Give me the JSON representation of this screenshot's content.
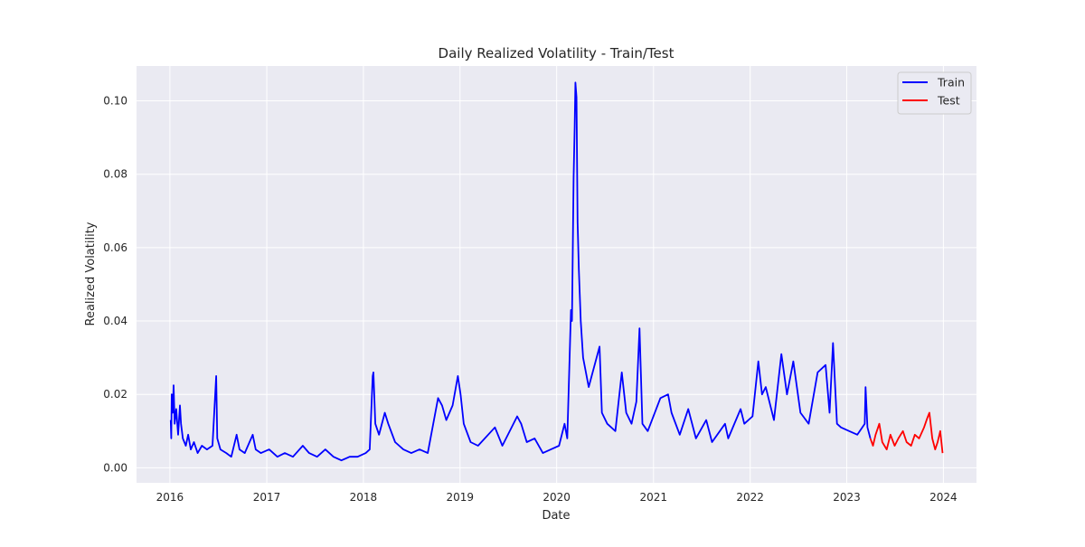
{
  "chart_data": {
    "type": "line",
    "title": "Daily Realized Volatility - Train/Test",
    "xlabel": "Date",
    "ylabel": "Realized Volatility",
    "x_range": [
      "2015-08-28",
      "2024-05-05"
    ],
    "ylim": [
      -0.0041,
      0.1095
    ],
    "x_ticks": [
      "2016",
      "2017",
      "2018",
      "2019",
      "2020",
      "2021",
      "2022",
      "2023",
      "2024"
    ],
    "y_ticks": [
      "0.00",
      "0.02",
      "0.04",
      "0.06",
      "0.08",
      "0.10"
    ],
    "y_tick_values": [
      0,
      0.02,
      0.04,
      0.06,
      0.08,
      0.1
    ],
    "grid": true,
    "background": "#eaeaf2",
    "legend": {
      "placement": "top-right"
    },
    "series": [
      {
        "name": "Train",
        "color": "#0000ff",
        "points": [
          [
            "2016-01-04",
            0.013
          ],
          [
            "2016-01-06",
            0.008
          ],
          [
            "2016-01-08",
            0.02
          ],
          [
            "2016-01-12",
            0.015
          ],
          [
            "2016-01-15",
            0.0225
          ],
          [
            "2016-01-19",
            0.012
          ],
          [
            "2016-01-25",
            0.016
          ],
          [
            "2016-02-01",
            0.009
          ],
          [
            "2016-02-08",
            0.017
          ],
          [
            "2016-02-12",
            0.012
          ],
          [
            "2016-02-19",
            0.008
          ],
          [
            "2016-03-01",
            0.006
          ],
          [
            "2016-03-10",
            0.009
          ],
          [
            "2016-03-20",
            0.005
          ],
          [
            "2016-04-01",
            0.007
          ],
          [
            "2016-04-15",
            0.004
          ],
          [
            "2016-05-01",
            0.006
          ],
          [
            "2016-05-20",
            0.005
          ],
          [
            "2016-06-10",
            0.006
          ],
          [
            "2016-06-24",
            0.025
          ],
          [
            "2016-06-28",
            0.008
          ],
          [
            "2016-07-10",
            0.005
          ],
          [
            "2016-08-01",
            0.004
          ],
          [
            "2016-08-20",
            0.003
          ],
          [
            "2016-09-09",
            0.009
          ],
          [
            "2016-09-20",
            0.005
          ],
          [
            "2016-10-10",
            0.004
          ],
          [
            "2016-11-09",
            0.009
          ],
          [
            "2016-11-20",
            0.005
          ],
          [
            "2016-12-10",
            0.004
          ],
          [
            "2017-01-10",
            0.005
          ],
          [
            "2017-02-10",
            0.003
          ],
          [
            "2017-03-10",
            0.004
          ],
          [
            "2017-04-10",
            0.003
          ],
          [
            "2017-05-17",
            0.006
          ],
          [
            "2017-06-10",
            0.004
          ],
          [
            "2017-07-10",
            0.003
          ],
          [
            "2017-08-10",
            0.005
          ],
          [
            "2017-09-10",
            0.003
          ],
          [
            "2017-10-10",
            0.002
          ],
          [
            "2017-11-10",
            0.003
          ],
          [
            "2017-12-10",
            0.003
          ],
          [
            "2018-01-10",
            0.004
          ],
          [
            "2018-01-25",
            0.005
          ],
          [
            "2018-02-05",
            0.025
          ],
          [
            "2018-02-08",
            0.026
          ],
          [
            "2018-02-15",
            0.012
          ],
          [
            "2018-03-01",
            0.009
          ],
          [
            "2018-03-23",
            0.015
          ],
          [
            "2018-04-05",
            0.012
          ],
          [
            "2018-05-01",
            0.007
          ],
          [
            "2018-06-01",
            0.005
          ],
          [
            "2018-07-01",
            0.004
          ],
          [
            "2018-08-01",
            0.005
          ],
          [
            "2018-09-01",
            0.004
          ],
          [
            "2018-10-10",
            0.019
          ],
          [
            "2018-10-25",
            0.017
          ],
          [
            "2018-11-10",
            0.013
          ],
          [
            "2018-12-04",
            0.017
          ],
          [
            "2018-12-24",
            0.025
          ],
          [
            "2019-01-03",
            0.02
          ],
          [
            "2019-01-15",
            0.012
          ],
          [
            "2019-02-10",
            0.007
          ],
          [
            "2019-03-10",
            0.006
          ],
          [
            "2019-05-13",
            0.011
          ],
          [
            "2019-06-10",
            0.006
          ],
          [
            "2019-08-05",
            0.014
          ],
          [
            "2019-08-20",
            0.012
          ],
          [
            "2019-09-10",
            0.007
          ],
          [
            "2019-10-10",
            0.008
          ],
          [
            "2019-11-10",
            0.004
          ],
          [
            "2019-12-10",
            0.005
          ],
          [
            "2020-01-10",
            0.006
          ],
          [
            "2020-01-31",
            0.012
          ],
          [
            "2020-02-10",
            0.008
          ],
          [
            "2020-02-24",
            0.043
          ],
          [
            "2020-02-28",
            0.04
          ],
          [
            "2020-03-05",
            0.079
          ],
          [
            "2020-03-09",
            0.093
          ],
          [
            "2020-03-12",
            0.105
          ],
          [
            "2020-03-16",
            0.101
          ],
          [
            "2020-03-20",
            0.067
          ],
          [
            "2020-03-25",
            0.054
          ],
          [
            "2020-04-01",
            0.04
          ],
          [
            "2020-04-10",
            0.03
          ],
          [
            "2020-05-01",
            0.022
          ],
          [
            "2020-06-11",
            0.033
          ],
          [
            "2020-06-20",
            0.015
          ],
          [
            "2020-07-10",
            0.012
          ],
          [
            "2020-08-10",
            0.01
          ],
          [
            "2020-09-03",
            0.026
          ],
          [
            "2020-09-20",
            0.015
          ],
          [
            "2020-10-10",
            0.012
          ],
          [
            "2020-10-28",
            0.018
          ],
          [
            "2020-11-09",
            0.038
          ],
          [
            "2020-11-20",
            0.012
          ],
          [
            "2020-12-10",
            0.01
          ],
          [
            "2021-01-27",
            0.019
          ],
          [
            "2021-02-25",
            0.02
          ],
          [
            "2021-03-10",
            0.015
          ],
          [
            "2021-04-10",
            0.009
          ],
          [
            "2021-05-12",
            0.016
          ],
          [
            "2021-06-10",
            0.008
          ],
          [
            "2021-07-19",
            0.013
          ],
          [
            "2021-08-10",
            0.007
          ],
          [
            "2021-09-28",
            0.012
          ],
          [
            "2021-10-10",
            0.008
          ],
          [
            "2021-11-26",
            0.016
          ],
          [
            "2021-12-10",
            0.012
          ],
          [
            "2022-01-10",
            0.014
          ],
          [
            "2022-02-01",
            0.029
          ],
          [
            "2022-02-15",
            0.02
          ],
          [
            "2022-03-01",
            0.022
          ],
          [
            "2022-04-01",
            0.013
          ],
          [
            "2022-04-29",
            0.031
          ],
          [
            "2022-05-20",
            0.02
          ],
          [
            "2022-06-13",
            0.029
          ],
          [
            "2022-07-10",
            0.015
          ],
          [
            "2022-08-10",
            0.012
          ],
          [
            "2022-09-13",
            0.026
          ],
          [
            "2022-10-13",
            0.028
          ],
          [
            "2022-10-28",
            0.015
          ],
          [
            "2022-11-10",
            0.034
          ],
          [
            "2022-11-25",
            0.012
          ],
          [
            "2022-12-10",
            0.011
          ],
          [
            "2023-01-10",
            0.01
          ],
          [
            "2023-02-10",
            0.009
          ],
          [
            "2023-03-10",
            0.012
          ],
          [
            "2023-03-13",
            0.022
          ],
          [
            "2023-03-20",
            0.011
          ],
          [
            "2023-03-31",
            0.008
          ]
        ]
      },
      {
        "name": "Test",
        "color": "#ff0000",
        "points": [
          [
            "2023-03-31",
            0.008
          ],
          [
            "2023-04-10",
            0.006
          ],
          [
            "2023-04-20",
            0.009
          ],
          [
            "2023-05-04",
            0.012
          ],
          [
            "2023-05-15",
            0.007
          ],
          [
            "2023-06-01",
            0.005
          ],
          [
            "2023-06-15",
            0.009
          ],
          [
            "2023-07-01",
            0.006
          ],
          [
            "2023-07-15",
            0.008
          ],
          [
            "2023-08-01",
            0.01
          ],
          [
            "2023-08-15",
            0.007
          ],
          [
            "2023-09-01",
            0.006
          ],
          [
            "2023-09-15",
            0.009
          ],
          [
            "2023-10-01",
            0.008
          ],
          [
            "2023-10-20",
            0.011
          ],
          [
            "2023-11-01",
            0.0135
          ],
          [
            "2023-11-09",
            0.015
          ],
          [
            "2023-11-20",
            0.008
          ],
          [
            "2023-12-01",
            0.005
          ],
          [
            "2023-12-10",
            0.007
          ],
          [
            "2023-12-20",
            0.01
          ],
          [
            "2023-12-29",
            0.004
          ]
        ]
      }
    ]
  }
}
